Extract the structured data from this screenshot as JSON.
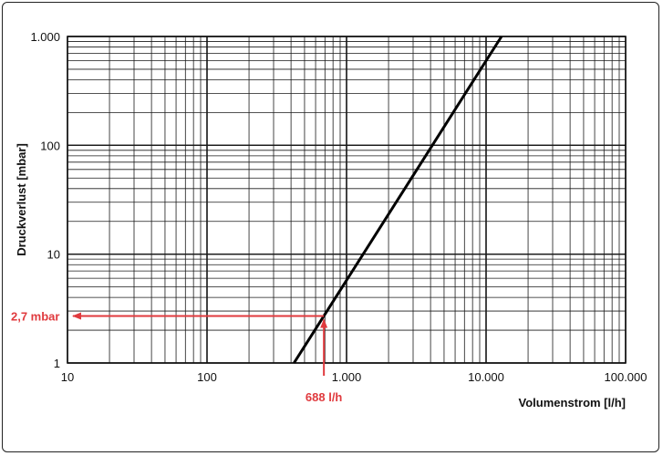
{
  "chart_data": {
    "type": "line",
    "x_scale": "log",
    "y_scale": "log",
    "xlim": [
      10,
      100000
    ],
    "ylim": [
      1,
      1000
    ],
    "xlabel": "Volumenstrom [l/h]",
    "ylabel": "Druckverlust [mbar]",
    "x_ticks": [
      10,
      100,
      1000,
      10000,
      100000
    ],
    "x_tick_labels": [
      "10",
      "100",
      "1.000",
      "10.000",
      "100.000"
    ],
    "y_ticks": [
      1,
      10,
      100,
      1000
    ],
    "y_tick_labels": [
      "1",
      "10",
      "100",
      "1.000"
    ],
    "grid": true,
    "series": [
      {
        "x": [
          420,
          12900
        ],
        "y": [
          1,
          1000
        ]
      }
    ],
    "annotation": {
      "x": 688,
      "y": 2.7,
      "x_label": "688 l/h",
      "y_label": "2,7 mbar",
      "color": "#e03a3e"
    },
    "line_color": "#000000"
  }
}
